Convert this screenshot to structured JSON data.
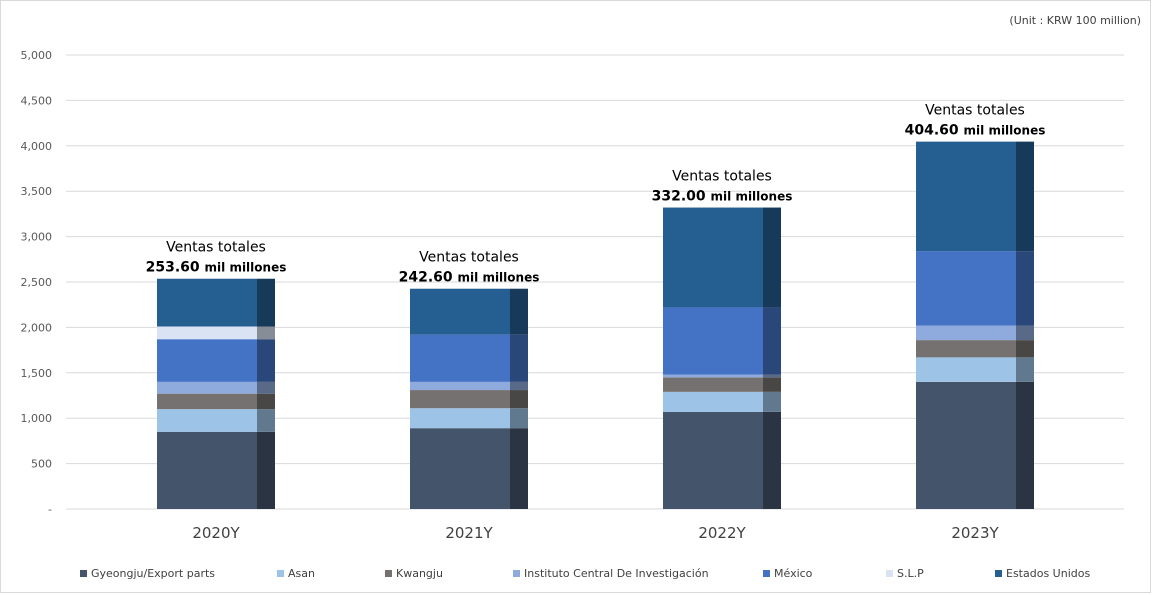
{
  "unit_note": "(Unit : KRW 100 million)",
  "chart_data": {
    "type": "bar",
    "stacked": true,
    "categories": [
      "2020Y",
      "2021Y",
      "2022Y",
      "2023Y"
    ],
    "ylim": [
      0,
      5000
    ],
    "yticks": [
      0,
      500,
      1000,
      1500,
      2000,
      2500,
      3000,
      3500,
      4000,
      4500,
      5000
    ],
    "ytick_labels": [
      "-",
      "500",
      "1,000",
      "1,500",
      "2,000",
      "2,500",
      "3,000",
      "3,500",
      "4,000",
      "4,500",
      "5,000"
    ],
    "grid": true,
    "legend_position": "bottom",
    "series": [
      {
        "name": "Gyeongju/Export parts",
        "color": "#44546a",
        "values": [
          850,
          890,
          1070,
          1400
        ]
      },
      {
        "name": "Asan",
        "color": "#9dc3e6",
        "values": [
          250,
          220,
          220,
          270
        ]
      },
      {
        "name": "Kwangju",
        "color": "#767171",
        "values": [
          170,
          200,
          160,
          190
        ]
      },
      {
        "name": "Instituto Central De Investigación",
        "color": "#8faadc",
        "values": [
          130,
          90,
          30,
          160
        ]
      },
      {
        "name": "México",
        "color": "#4472c4",
        "values": [
          470,
          520,
          740,
          820
        ]
      },
      {
        "name": "S.L.P",
        "color": "#dae3f3",
        "values": [
          140,
          0,
          0,
          0
        ]
      },
      {
        "name": "Estados Unidos",
        "color": "#255e91",
        "values": [
          526,
          506,
          1100,
          1206
        ]
      }
    ],
    "totals": [
      {
        "label": "Ventas totales",
        "value": "253.60",
        "unit": "mil millones"
      },
      {
        "label": "Ventas totales",
        "value": "242.60",
        "unit": "mil millones"
      },
      {
        "label": "Ventas totales",
        "value": "332.00",
        "unit": "mil millones"
      },
      {
        "label": "Ventas totales",
        "value": "404.60",
        "unit": "mil millones"
      }
    ]
  }
}
